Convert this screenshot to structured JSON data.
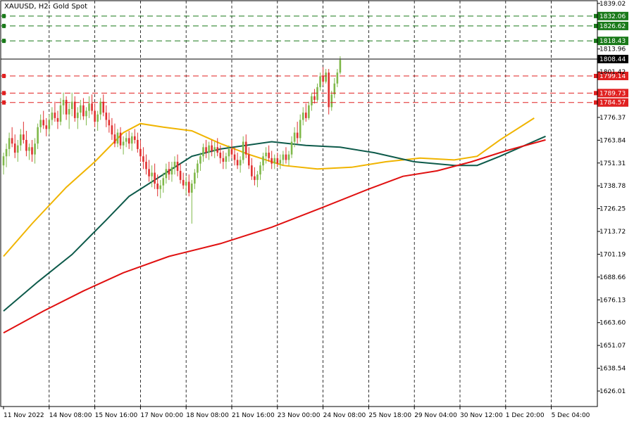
{
  "chart_data": {
    "type": "candlestick",
    "title": "XAUUSD, H2:  Gold Spot",
    "y_ticks": [
      1839.02,
      1813.96,
      1801.42,
      1776.37,
      1763.84,
      1751.31,
      1738.78,
      1726.25,
      1713.72,
      1701.19,
      1688.66,
      1676.13,
      1663.6,
      1651.07,
      1638.54,
      1626.01
    ],
    "ylim": [
      1617.5,
      1840.5
    ],
    "x_ticks": [
      {
        "label": "11 Nov 2022",
        "i": 0
      },
      {
        "label": "14 Nov 08:00",
        "i": 16
      },
      {
        "label": "15 Nov 16:00",
        "i": 32
      },
      {
        "label": "17 Nov 00:00",
        "i": 48
      },
      {
        "label": "18 Nov 08:00",
        "i": 64
      },
      {
        "label": "21 Nov 16:00",
        "i": 80
      },
      {
        "label": "23 Nov 00:00",
        "i": 96
      },
      {
        "label": "24 Nov 08:00",
        "i": 112
      },
      {
        "label": "25 Nov 18:00",
        "i": 128
      },
      {
        "label": "29 Nov 04:00",
        "i": 144
      },
      {
        "label": "30 Nov 12:00",
        "i": 160
      },
      {
        "label": "1 Dec 20:00",
        "i": 176
      },
      {
        "label": "5 Dec 04:00",
        "i": 192
      }
    ],
    "levels": [
      {
        "value": 1832.06,
        "label": "1832.06",
        "kind": "resistance",
        "color": "#1a7a1a"
      },
      {
        "value": 1826.62,
        "label": "1826.62",
        "kind": "resistance",
        "color": "#1a7a1a"
      },
      {
        "value": 1818.43,
        "label": "1818.43",
        "kind": "resistance",
        "color": "#1a7a1a"
      },
      {
        "value": 1808.44,
        "label": "1808.44",
        "kind": "current",
        "color": "#000000"
      },
      {
        "value": 1799.14,
        "label": "1799.14",
        "kind": "support",
        "color": "#e02020"
      },
      {
        "value": 1789.73,
        "label": "1789.73",
        "kind": "support",
        "color": "#e02020"
      },
      {
        "value": 1784.57,
        "label": "1784.57",
        "kind": "support",
        "color": "#e02020"
      }
    ],
    "ma_lines": [
      {
        "color": "#f0b400",
        "points": [
          [
            0,
            1700
          ],
          [
            10,
            1718
          ],
          [
            22,
            1738
          ],
          [
            32,
            1752
          ],
          [
            42,
            1768
          ],
          [
            48,
            1773
          ],
          [
            56,
            1771
          ],
          [
            66,
            1769
          ],
          [
            76,
            1762
          ],
          [
            86,
            1756
          ],
          [
            98,
            1750
          ],
          [
            110,
            1748
          ],
          [
            122,
            1749
          ],
          [
            134,
            1752
          ],
          [
            146,
            1754
          ],
          [
            158,
            1753
          ],
          [
            166,
            1755
          ],
          [
            174,
            1764
          ],
          [
            186,
            1776
          ]
        ]
      },
      {
        "color": "#0d5a4a",
        "points": [
          [
            0,
            1670
          ],
          [
            12,
            1686
          ],
          [
            24,
            1701
          ],
          [
            36,
            1720
          ],
          [
            44,
            1733
          ],
          [
            56,
            1745
          ],
          [
            66,
            1755
          ],
          [
            76,
            1759
          ],
          [
            94,
            1763
          ],
          [
            106,
            1761
          ],
          [
            118,
            1760
          ],
          [
            130,
            1757
          ],
          [
            144,
            1752
          ],
          [
            158,
            1750
          ],
          [
            166,
            1750
          ],
          [
            174,
            1755
          ],
          [
            190,
            1766
          ]
        ]
      },
      {
        "color": "#e01010",
        "points": [
          [
            0,
            1658
          ],
          [
            14,
            1670
          ],
          [
            28,
            1681
          ],
          [
            42,
            1691
          ],
          [
            58,
            1700
          ],
          [
            76,
            1707
          ],
          [
            94,
            1716
          ],
          [
            112,
            1727
          ],
          [
            128,
            1737
          ],
          [
            140,
            1744
          ],
          [
            152,
            1747
          ],
          [
            164,
            1752
          ],
          [
            176,
            1758
          ],
          [
            190,
            1764
          ]
        ]
      }
    ],
    "candles": [
      [
        1750,
        1757,
        1745,
        1755
      ],
      [
        1755,
        1762,
        1749,
        1759
      ],
      [
        1759,
        1768,
        1755,
        1765
      ],
      [
        1765,
        1771,
        1760,
        1762
      ],
      [
        1762,
        1767,
        1754,
        1757
      ],
      [
        1757,
        1764,
        1752,
        1761
      ],
      [
        1761,
        1770,
        1758,
        1767
      ],
      [
        1767,
        1774,
        1762,
        1764
      ],
      [
        1764,
        1769,
        1755,
        1758
      ],
      [
        1758,
        1762,
        1753,
        1760
      ],
      [
        1760,
        1764,
        1752,
        1756
      ],
      [
        1756,
        1765,
        1751,
        1762
      ],
      [
        1762,
        1773,
        1759,
        1771
      ],
      [
        1771,
        1778,
        1768,
        1775
      ],
      [
        1775,
        1780,
        1770,
        1772
      ],
      [
        1772,
        1776,
        1766,
        1770
      ],
      [
        1770,
        1778,
        1767,
        1775
      ],
      [
        1775,
        1782,
        1772,
        1779
      ],
      [
        1779,
        1785,
        1774,
        1776
      ],
      [
        1776,
        1780,
        1770,
        1774
      ],
      [
        1774,
        1787,
        1772,
        1783
      ],
      [
        1783,
        1790,
        1778,
        1786
      ],
      [
        1786,
        1788,
        1775,
        1778
      ],
      [
        1778,
        1784,
        1770,
        1781
      ],
      [
        1781,
        1790,
        1777,
        1785
      ],
      [
        1785,
        1788,
        1774,
        1776
      ],
      [
        1776,
        1782,
        1770,
        1779
      ],
      [
        1779,
        1786,
        1775,
        1783
      ],
      [
        1783,
        1787,
        1775,
        1777
      ],
      [
        1777,
        1782,
        1772,
        1780
      ],
      [
        1780,
        1788,
        1776,
        1784
      ],
      [
        1784,
        1789,
        1778,
        1780
      ],
      [
        1780,
        1784,
        1771,
        1774
      ],
      [
        1774,
        1780,
        1769,
        1778
      ],
      [
        1778,
        1787,
        1775,
        1785
      ],
      [
        1785,
        1789,
        1777,
        1779
      ],
      [
        1779,
        1783,
        1771,
        1775
      ],
      [
        1775,
        1779,
        1768,
        1772
      ],
      [
        1772,
        1776,
        1764,
        1767
      ],
      [
        1767,
        1773,
        1760,
        1762
      ],
      [
        1762,
        1770,
        1760,
        1768
      ],
      [
        1768,
        1771,
        1759,
        1761
      ],
      [
        1761,
        1766,
        1756,
        1763
      ],
      [
        1763,
        1768,
        1760,
        1765
      ],
      [
        1765,
        1769,
        1759,
        1762
      ],
      [
        1762,
        1768,
        1758,
        1766
      ],
      [
        1766,
        1770,
        1762,
        1764
      ],
      [
        1764,
        1768,
        1757,
        1759
      ],
      [
        1759,
        1764,
        1752,
        1755
      ],
      [
        1755,
        1760,
        1748,
        1752
      ],
      [
        1752,
        1756,
        1745,
        1748
      ],
      [
        1748,
        1753,
        1741,
        1744
      ],
      [
        1744,
        1750,
        1738,
        1746
      ],
      [
        1746,
        1751,
        1737,
        1740
      ],
      [
        1740,
        1745,
        1733,
        1737
      ],
      [
        1737,
        1742,
        1732,
        1739
      ],
      [
        1739,
        1746,
        1735,
        1743
      ],
      [
        1743,
        1751,
        1740,
        1748
      ],
      [
        1748,
        1752,
        1742,
        1745
      ],
      [
        1745,
        1752,
        1741,
        1749
      ],
      [
        1749,
        1755,
        1745,
        1752
      ],
      [
        1752,
        1756,
        1744,
        1747
      ],
      [
        1747,
        1751,
        1740,
        1742
      ],
      [
        1742,
        1746,
        1737,
        1739
      ],
      [
        1739,
        1744,
        1734,
        1741
      ],
      [
        1741,
        1745,
        1733,
        1735
      ],
      [
        1735,
        1742,
        1718,
        1740
      ],
      [
        1740,
        1748,
        1737,
        1746
      ],
      [
        1746,
        1753,
        1743,
        1751
      ],
      [
        1751,
        1757,
        1747,
        1755
      ],
      [
        1755,
        1762,
        1752,
        1760
      ],
      [
        1760,
        1764,
        1754,
        1757
      ],
      [
        1757,
        1763,
        1753,
        1761
      ],
      [
        1761,
        1764,
        1755,
        1758
      ],
      [
        1758,
        1763,
        1754,
        1760
      ],
      [
        1760,
        1765,
        1755,
        1757
      ],
      [
        1757,
        1761,
        1751,
        1754
      ],
      [
        1754,
        1758,
        1748,
        1752
      ],
      [
        1752,
        1757,
        1748,
        1755
      ],
      [
        1755,
        1761,
        1752,
        1759
      ],
      [
        1759,
        1764,
        1754,
        1756
      ],
      [
        1756,
        1760,
        1750,
        1753
      ],
      [
        1753,
        1757,
        1748,
        1750
      ],
      [
        1750,
        1755,
        1746,
        1753
      ],
      [
        1753,
        1766,
        1751,
        1763
      ],
      [
        1763,
        1767,
        1754,
        1756
      ],
      [
        1756,
        1760,
        1748,
        1750
      ],
      [
        1750,
        1754,
        1742,
        1744
      ],
      [
        1744,
        1749,
        1739,
        1742
      ],
      [
        1742,
        1747,
        1738,
        1745
      ],
      [
        1745,
        1752,
        1742,
        1750
      ],
      [
        1750,
        1757,
        1747,
        1755
      ],
      [
        1755,
        1760,
        1751,
        1757
      ],
      [
        1757,
        1761,
        1752,
        1754
      ],
      [
        1754,
        1758,
        1748,
        1751
      ],
      [
        1751,
        1756,
        1748,
        1754
      ],
      [
        1754,
        1757,
        1749,
        1751
      ],
      [
        1751,
        1756,
        1748,
        1753
      ],
      [
        1753,
        1758,
        1750,
        1756
      ],
      [
        1756,
        1760,
        1751,
        1753
      ],
      [
        1753,
        1758,
        1750,
        1756
      ],
      [
        1756,
        1766,
        1754,
        1763
      ],
      [
        1763,
        1771,
        1760,
        1768
      ],
      [
        1768,
        1774,
        1762,
        1765
      ],
      [
        1765,
        1778,
        1763,
        1775
      ],
      [
        1775,
        1782,
        1772,
        1779
      ],
      [
        1779,
        1784,
        1774,
        1776
      ],
      [
        1776,
        1785,
        1775,
        1783
      ],
      [
        1783,
        1790,
        1780,
        1788
      ],
      [
        1788,
        1792,
        1784,
        1786
      ],
      [
        1786,
        1795,
        1785,
        1793
      ],
      [
        1793,
        1801,
        1791,
        1799
      ],
      [
        1799,
        1804,
        1794,
        1796
      ],
      [
        1796,
        1803,
        1795,
        1801
      ],
      [
        1801,
        1803,
        1778,
        1782
      ],
      [
        1782,
        1791,
        1780,
        1789
      ],
      [
        1789,
        1798,
        1787,
        1795
      ],
      [
        1795,
        1803,
        1793,
        1801
      ],
      [
        1801,
        1810,
        1800,
        1808
      ]
    ]
  }
}
